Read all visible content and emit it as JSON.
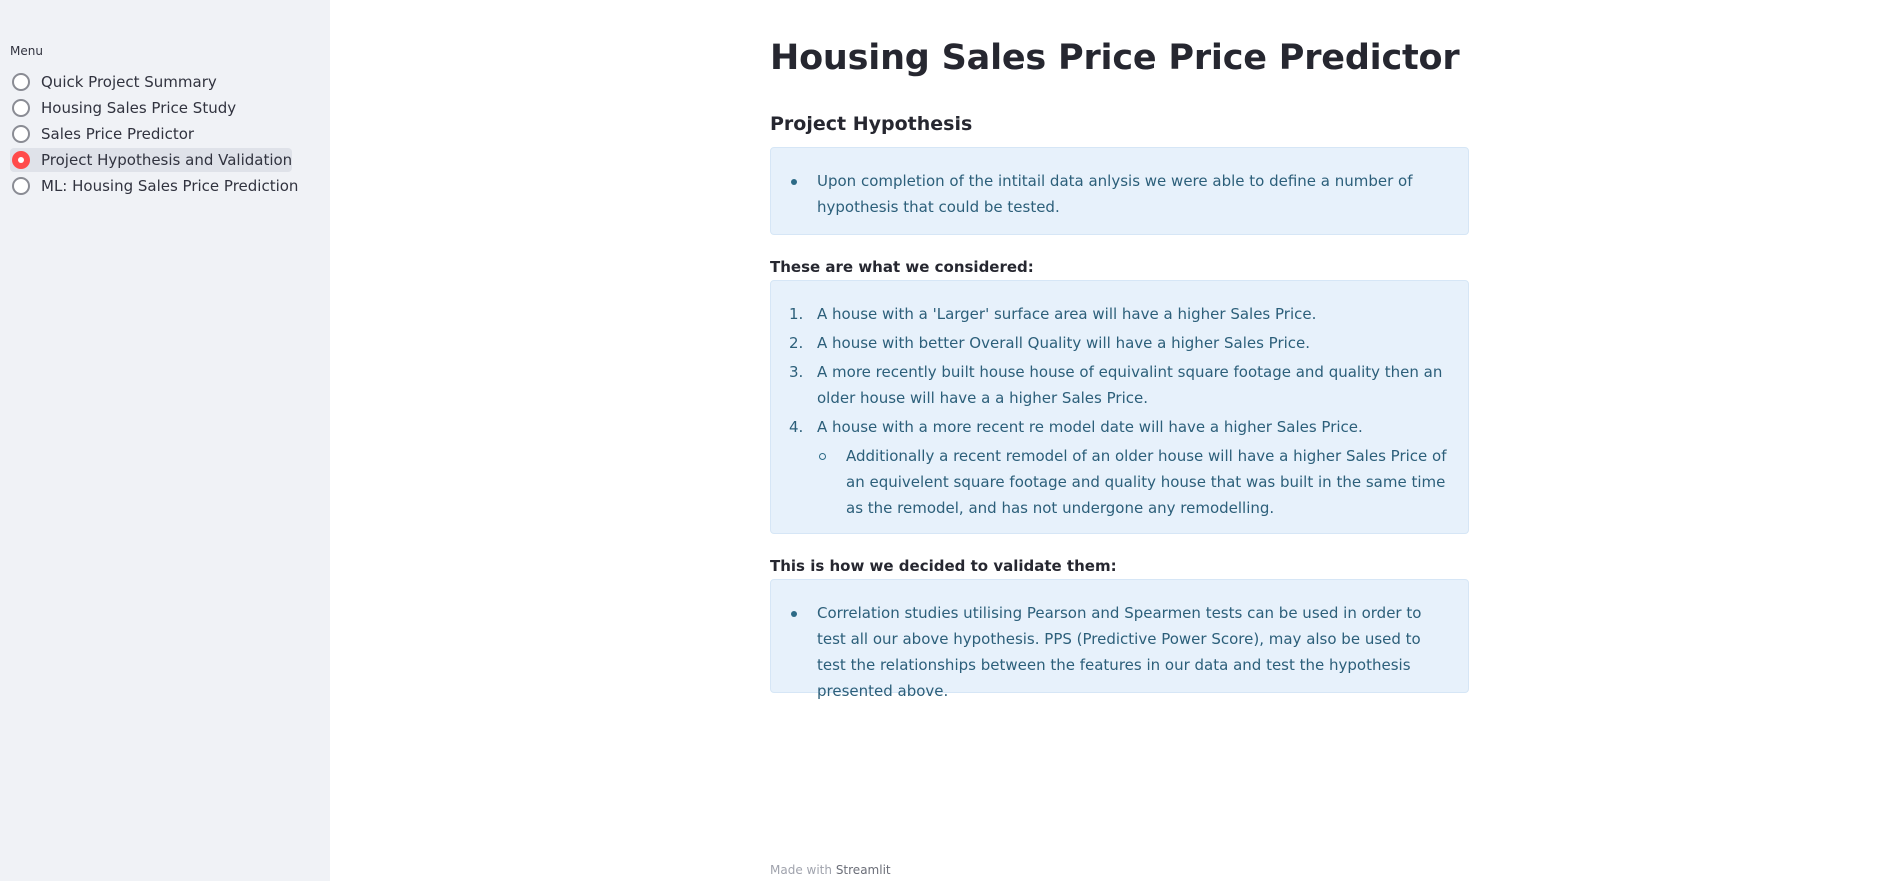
{
  "sidebar": {
    "menu_label": "Menu",
    "items": [
      {
        "label": "Quick Project Summary",
        "selected": false
      },
      {
        "label": "Housing Sales Price Study",
        "selected": false
      },
      {
        "label": "Sales Price Predictor",
        "selected": false
      },
      {
        "label": "Project Hypothesis and Validation",
        "selected": true
      },
      {
        "label": "ML: Housing Sales Price Prediction",
        "selected": false
      }
    ]
  },
  "main": {
    "title": "Housing Sales Price Price Predictor",
    "subheader": "Project Hypothesis",
    "intro_box": {
      "bullets": [
        "Upon completion of the intitail data anlysis we were able to define a number of hypothesis that could be tested."
      ]
    },
    "considered_heading": "These are what we considered:",
    "considered_box": {
      "items": [
        {
          "num": "1.",
          "text": "A house with a 'Larger' surface area will have a higher Sales Price."
        },
        {
          "num": "2.",
          "text": "A house with better Overall Quality will have a higher Sales Price."
        },
        {
          "num": "3.",
          "text": "A more recently built house house of equivalint square footage and quality then an older house will have a a higher Sales Price."
        },
        {
          "num": "4.",
          "text": "A house with a more recent re model date will have a higher Sales Price."
        }
      ],
      "sub_items": [
        "Additionally a recent remodel of an older house will have a higher Sales Price of an equivelent square footage and quality house that was built in the same time as the remodel, and has not undergone any remodelling."
      ]
    },
    "validate_heading": "This is how we decided to validate them:",
    "validate_box": {
      "bullets": [
        "Correlation studies utilising Pearson and Spearmen tests can be used in order to test all our above hypothesis. PPS (Predictive Power Score), may also be used to test the relationships between the features in our data and test the hypothesis presented above."
      ]
    }
  },
  "footer": {
    "made_with": "Made with",
    "brand": "Streamlit"
  },
  "colors": {
    "sidebar_bg": "#f0f2f6",
    "accent": "#ff4b4b",
    "info_bg": "#e7f1fb",
    "info_text": "#2c5f7a"
  }
}
